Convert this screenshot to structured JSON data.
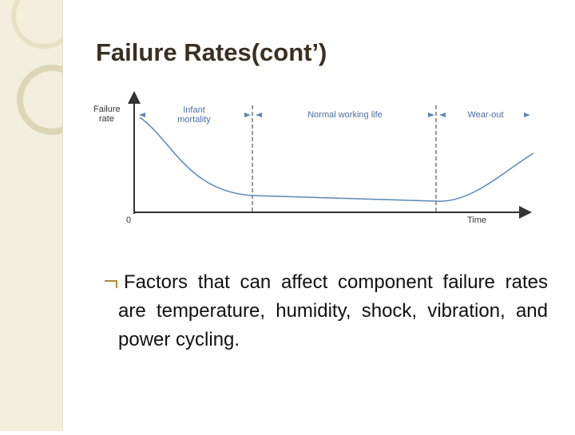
{
  "header": {
    "title": "Failure Rates(cont’)"
  },
  "diagram": {
    "y_axis_label": "Failure rate",
    "origin_label": "0",
    "x_axis_label": "Time",
    "regions": [
      "Infant mortality",
      "Normal working life",
      "Wear-out"
    ]
  },
  "bullets": [
    "Factors that can affect component failure rates are temperature, humidity, shock, vibration, and power cycling."
  ]
}
